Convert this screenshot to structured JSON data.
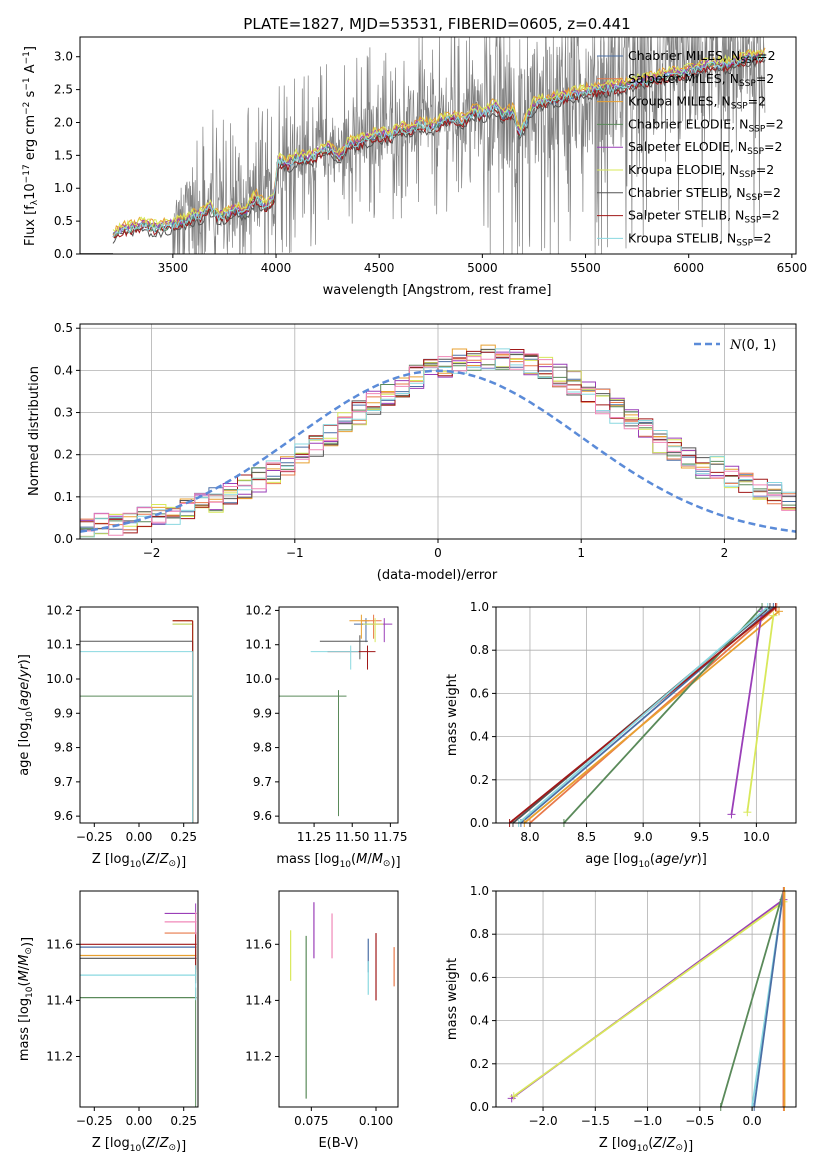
{
  "colors": {
    "Chabrier MILES": "#4a6fa5",
    "Salpeter MILES": "#e8794a",
    "Kroupa MILES": "#e8a030",
    "Chabrier ELODIE": "#5a8a5a",
    "Salpeter ELODIE": "#9a3fb8",
    "Kroupa ELODIE": "#d8e85a",
    "Chabrier STELIB": "#555555",
    "Salpeter STELIB": "#a01818",
    "Kroupa STELIB": "#8ad8e0",
    "pink": "#f088b8",
    "normal": "#5b8bd8",
    "data": "#808080"
  },
  "chart_data": [
    {
      "type": "line",
      "title": "PLATE=1827, MJD=53531, FIBERID=0605, z=0.441",
      "xlabel": "wavelength [Angstrom, rest frame]",
      "ylabel_parts": [
        "Flux [f",
        "λ",
        "10",
        "−17",
        " erg cm",
        "−2",
        " s",
        "−1",
        " A",
        "−1",
        "]"
      ],
      "xlim": [
        3050,
        6520
      ],
      "ylim": [
        0,
        3.3
      ],
      "xticks": [
        3500,
        4000,
        4500,
        5000,
        5500,
        6000,
        6500
      ],
      "yticks": [
        0.0,
        0.5,
        1.0,
        1.5,
        2.0,
        2.5,
        3.0
      ],
      "legend_placement": "upper-right",
      "legend": [
        {
          "name": "Chabrier MILES",
          "key": "Chabrier MILES"
        },
        {
          "name": "Salpeter MILES",
          "key": "Salpeter MILES"
        },
        {
          "name": "Kroupa MILES",
          "key": "Kroupa MILES"
        },
        {
          "name": "Chabrier ELODIE",
          "key": "Chabrier ELODIE"
        },
        {
          "name": "Salpeter ELODIE",
          "key": "Salpeter ELODIE"
        },
        {
          "name": "Kroupa ELODIE",
          "key": "Kroupa ELODIE"
        },
        {
          "name": "Chabrier STELIB",
          "key": "Chabrier STELIB"
        },
        {
          "name": "Salpeter STELIB",
          "key": "Salpeter STELIB"
        },
        {
          "name": "Kroupa STELIB",
          "key": "Kroupa STELIB"
        }
      ],
      "legend_suffix": ", N",
      "legend_sub": "SSP",
      "legend_tail": "=2",
      "model_continuum": {
        "x": [
          3210,
          3240,
          3300,
          3360,
          3420,
          3480,
          3540,
          3600,
          3640,
          3680,
          3720,
          3760,
          3800,
          3850,
          3900,
          3950,
          3990,
          4010,
          4060,
          4100,
          4160,
          4200,
          4260,
          4300,
          4350,
          4400,
          4450,
          4500,
          4560,
          4600,
          4650,
          4700,
          4760,
          4800,
          4860,
          4900,
          4960,
          5000,
          5060,
          5100,
          5150,
          5180,
          5250,
          5300,
          5400,
          5500,
          5600,
          5700,
          5800,
          5900,
          6000,
          6100,
          6200,
          6300,
          6360
        ],
        "y": [
          0.3,
          0.38,
          0.43,
          0.47,
          0.42,
          0.47,
          0.5,
          0.6,
          0.62,
          0.75,
          0.6,
          0.62,
          0.7,
          0.66,
          0.9,
          0.75,
          0.85,
          1.45,
          1.4,
          1.5,
          1.48,
          1.55,
          1.65,
          1.5,
          1.7,
          1.72,
          1.8,
          1.85,
          1.82,
          1.95,
          1.9,
          2.02,
          1.95,
          2.05,
          2.1,
          2.05,
          2.2,
          2.15,
          2.28,
          2.15,
          2.2,
          1.85,
          2.3,
          2.35,
          2.42,
          2.5,
          2.55,
          2.6,
          2.68,
          2.75,
          2.8,
          2.9,
          2.92,
          3.02,
          3.05
        ]
      },
      "data_note": "observed spectrum drawn in gray"
    },
    {
      "type": "histogram",
      "xlabel": "(data-model)/error",
      "ylabel": "Normed distribution",
      "xlim": [
        -2.5,
        2.5
      ],
      "ylim": [
        0,
        0.51
      ],
      "xticks": [
        -2,
        -1,
        0,
        1,
        2
      ],
      "yticks": [
        0.0,
        0.1,
        0.2,
        0.3,
        0.4,
        0.5
      ],
      "legend_label": "N(0,1)",
      "legend_placement": "upper-right",
      "bin_width": 0.1,
      "series_keys": [
        "Chabrier MILES",
        "Salpeter MILES",
        "Kroupa MILES",
        "Chabrier ELODIE",
        "Salpeter ELODIE",
        "Kroupa ELODIE",
        "Chabrier STELIB",
        "Salpeter STELIB",
        "Kroupa STELIB",
        "pink"
      ]
    },
    {
      "type": "scatter",
      "xlabel": "Z [log10(Z/Z⊙)]",
      "ylabel": "age  [log10(age/yr)]",
      "xlim": [
        -0.33,
        0.33
      ],
      "ylim": [
        9.58,
        10.21
      ],
      "xticks": [
        -0.25,
        0.0,
        0.25
      ],
      "xticklabels": [
        "−0.25",
        "0.00",
        "0.25"
      ],
      "yticks": [
        9.6,
        9.7,
        9.8,
        9.9,
        10.0,
        10.1,
        10.2
      ],
      "points": [
        {
          "key": "Chabrier MILES",
          "x": 0.3,
          "y": 10.16
        },
        {
          "key": "Salpeter MILES",
          "x": 0.3,
          "y": 10.17
        },
        {
          "key": "Kroupa MILES",
          "x": 0.3,
          "y": 10.17
        },
        {
          "key": "Chabrier ELODIE",
          "x": 0.3,
          "y": 9.95
        },
        {
          "key": "Kroupa ELODIE",
          "x": 0.3,
          "y": 10.16
        },
        {
          "key": "Chabrier STELIB",
          "x": 0.3,
          "y": 10.11
        },
        {
          "key": "Salpeter STELIB",
          "x": 0.3,
          "y": 10.17
        },
        {
          "key": "Kroupa STELIB",
          "x": 0.3,
          "y": 10.08
        }
      ]
    },
    {
      "type": "scatter",
      "xlabel": "mass [log10(M/M⊙)]",
      "xlim": [
        11.02,
        11.8
      ],
      "ylim": [
        9.58,
        10.21
      ],
      "xticks": [
        11.25,
        11.5,
        11.75
      ],
      "xticklabels": [
        "11.25",
        "11.50",
        "11.75"
      ],
      "yticks": [
        9.6,
        9.7,
        9.8,
        9.9,
        10.0,
        10.1,
        10.2
      ],
      "points": [
        {
          "key": "Chabrier MILES",
          "x": 11.59,
          "y": 10.16
        },
        {
          "key": "Salpeter MILES",
          "x": 11.64,
          "y": 10.17
        },
        {
          "key": "Kroupa MILES",
          "x": 11.56,
          "y": 10.17
        },
        {
          "key": "Chabrier ELODIE",
          "x": 11.41,
          "y": 9.95
        },
        {
          "key": "Salpeter ELODIE",
          "x": 11.71,
          "y": 10.16
        },
        {
          "key": "Kroupa ELODIE",
          "x": 11.65,
          "y": 10.16
        },
        {
          "key": "Chabrier STELIB",
          "x": 11.55,
          "y": 10.11
        },
        {
          "key": "Salpeter STELIB",
          "x": 11.6,
          "y": 10.08
        },
        {
          "key": "Kroupa STELIB",
          "x": 11.49,
          "y": 10.08
        }
      ]
    },
    {
      "type": "line",
      "xlabel": "age  [log10(age/yr)]",
      "ylabel": "mass weight",
      "xlim": [
        7.7,
        10.35
      ],
      "ylim": [
        0,
        1.0
      ],
      "xticks": [
        8.0,
        8.5,
        9.0,
        9.5,
        10.0
      ],
      "yticks": [
        0.0,
        0.2,
        0.4,
        0.6,
        0.8,
        1.0
      ],
      "lines": [
        {
          "key": "Chabrier MILES",
          "x": [
            7.92,
            10.15
          ],
          "y": [
            0.0,
            1.0
          ]
        },
        {
          "key": "Salpeter MILES",
          "x": [
            8.0,
            10.18
          ],
          "y": [
            0.0,
            1.0
          ]
        },
        {
          "key": "Kroupa MILES",
          "x": [
            7.95,
            10.2
          ],
          "y": [
            0.0,
            0.98
          ]
        },
        {
          "key": "Chabrier ELODIE",
          "x": [
            8.3,
            10.05
          ],
          "y": [
            0.0,
            1.0
          ]
        },
        {
          "key": "Salpeter ELODIE",
          "x": [
            9.78,
            10.05
          ],
          "y": [
            0.04,
            0.98
          ]
        },
        {
          "key": "Kroupa ELODIE",
          "x": [
            9.92,
            10.15
          ],
          "y": [
            0.05,
            0.96
          ]
        },
        {
          "key": "Chabrier STELIB",
          "x": [
            7.85,
            10.12
          ],
          "y": [
            0.0,
            1.0
          ]
        },
        {
          "key": "Salpeter STELIB",
          "x": [
            7.82,
            10.17
          ],
          "y": [
            0.0,
            1.0
          ]
        },
        {
          "key": "Kroupa STELIB",
          "x": [
            7.9,
            10.1
          ],
          "y": [
            0.0,
            1.0
          ]
        }
      ]
    },
    {
      "type": "scatter",
      "xlabel": "Z [log10(Z/Z⊙)]",
      "ylabel": "mass [log10(M/M⊙)]",
      "xlim": [
        -0.33,
        0.33
      ],
      "ylim": [
        11.02,
        11.79
      ],
      "xticks": [
        -0.25,
        0.0,
        0.25
      ],
      "xticklabels": [
        "−0.25",
        "0.00",
        "0.25"
      ],
      "yticks": [
        11.2,
        11.4,
        11.6
      ],
      "points": [
        {
          "key": "Chabrier MILES",
          "x": 0.3,
          "y": 11.59
        },
        {
          "key": "Salpeter MILES",
          "x": 0.3,
          "y": 11.64
        },
        {
          "key": "Kroupa MILES",
          "x": 0.3,
          "y": 11.56
        },
        {
          "key": "Chabrier ELODIE",
          "x": 0.3,
          "y": 11.41
        },
        {
          "key": "Salpeter ELODIE",
          "x": 0.3,
          "y": 11.71
        },
        {
          "key": "pink",
          "x": 0.3,
          "y": 11.68
        },
        {
          "key": "Chabrier STELIB",
          "x": 0.3,
          "y": 11.55
        },
        {
          "key": "Salpeter STELIB",
          "x": 0.3,
          "y": 11.6
        },
        {
          "key": "Kroupa STELIB",
          "x": 0.3,
          "y": 11.49
        }
      ]
    },
    {
      "type": "scatter",
      "xlabel": "E(B-V)",
      "xlim": [
        0.0625,
        0.1085
      ],
      "ylim": [
        11.02,
        11.79
      ],
      "xticks": [
        0.075,
        0.1
      ],
      "xticklabels": [
        "0.075",
        "0.100"
      ],
      "yticks": [
        11.2,
        11.4,
        11.6
      ],
      "points": [
        {
          "key": "Kroupa ELODIE",
          "x": 0.067,
          "y": 11.56,
          "err": 0.09
        },
        {
          "key": "Chabrier ELODIE",
          "x": 0.073,
          "y": 11.34,
          "err": 0.29
        },
        {
          "key": "Salpeter ELODIE",
          "x": 0.076,
          "y": 11.65,
          "err": 0.1
        },
        {
          "key": "pink",
          "x": 0.083,
          "y": 11.63,
          "err": 0.08
        },
        {
          "key": "Chabrier MILES",
          "x": 0.097,
          "y": 11.56,
          "err": 0.06
        },
        {
          "key": "Kroupa STELIB",
          "x": 0.097,
          "y": 11.48,
          "err": 0.06
        },
        {
          "key": "Salpeter STELIB",
          "x": 0.1,
          "y": 11.52,
          "err": 0.12
        },
        {
          "key": "Salpeter MILES",
          "x": 0.107,
          "y": 11.52,
          "err": 0.07
        }
      ]
    },
    {
      "type": "line",
      "xlabel": "Z [log10(Z/Z⊙)]",
      "ylabel": "mass weight",
      "xlim": [
        -2.45,
        0.42
      ],
      "ylim": [
        0,
        1.0
      ],
      "xticks": [
        -2.0,
        -1.5,
        -1.0,
        -0.5,
        0.0
      ],
      "xticklabels": [
        "−2.0",
        "−1.5",
        "−1.0",
        "−0.5",
        "0.0"
      ],
      "yticks": [
        0.0,
        0.2,
        0.4,
        0.6,
        0.8,
        1.0
      ],
      "lines": [
        {
          "key": "Salpeter ELODIE",
          "x": [
            -2.3,
            0.3
          ],
          "y": [
            0.04,
            0.96
          ]
        },
        {
          "key": "Kroupa ELODIE",
          "x": [
            -2.28,
            0.3
          ],
          "y": [
            0.05,
            0.95
          ]
        },
        {
          "key": "Chabrier ELODIE",
          "x": [
            -0.3,
            0.3
          ],
          "y": [
            0.0,
            1.0
          ]
        },
        {
          "key": "Kroupa STELIB",
          "x": [
            0.0,
            0.3
          ],
          "y": [
            0.0,
            1.0
          ]
        },
        {
          "key": "Chabrier MILES",
          "x": [
            0.02,
            0.3
          ],
          "y": [
            0.0,
            1.0
          ]
        },
        {
          "key": "Salpeter MILES",
          "x": [
            0.3,
            0.3
          ],
          "y": [
            0.0,
            1.0
          ]
        },
        {
          "key": "Kroupa MILES",
          "x": [
            0.31,
            0.31
          ],
          "y": [
            0.0,
            1.0
          ]
        }
      ]
    }
  ]
}
